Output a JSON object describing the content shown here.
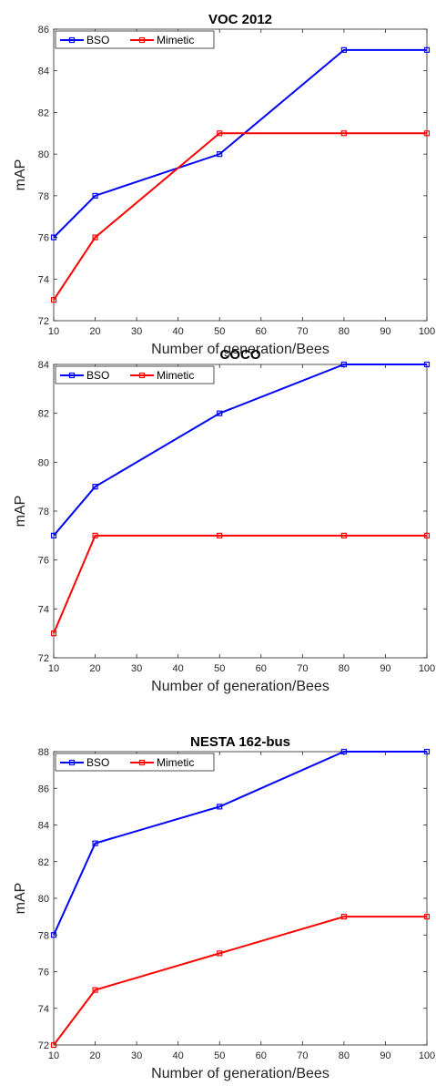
{
  "chart_data": [
    {
      "type": "line",
      "title": "VOC 2012",
      "xlabel": "Number of generation/Bees",
      "ylabel": "mAP",
      "xlim": [
        10,
        100
      ],
      "ylim": [
        72,
        86
      ],
      "xticks": [
        10,
        20,
        30,
        40,
        50,
        60,
        70,
        80,
        90,
        100
      ],
      "yticks": [
        72,
        74,
        76,
        78,
        80,
        82,
        84,
        86
      ],
      "legend_position": "top-left",
      "series": [
        {
          "name": "BSO",
          "color": "#0000ff",
          "x": [
            10,
            20,
            50,
            80,
            100
          ],
          "y": [
            76,
            78,
            80,
            85,
            85
          ]
        },
        {
          "name": "Mimetic",
          "color": "#ff0000",
          "x": [
            10,
            20,
            50,
            80,
            100
          ],
          "y": [
            73,
            76,
            81,
            81,
            81
          ]
        }
      ]
    },
    {
      "type": "line",
      "title": "COCO",
      "xlabel": "Number of generation/Bees",
      "ylabel": "mAP",
      "xlim": [
        10,
        100
      ],
      "ylim": [
        72,
        84
      ],
      "xticks": [
        10,
        20,
        30,
        40,
        50,
        60,
        70,
        80,
        90,
        100
      ],
      "yticks": [
        72,
        74,
        76,
        78,
        80,
        82,
        84
      ],
      "legend_position": "top-left",
      "series": [
        {
          "name": "BSO",
          "color": "#0000ff",
          "x": [
            10,
            20,
            50,
            80,
            100
          ],
          "y": [
            77,
            79,
            82,
            84,
            84
          ]
        },
        {
          "name": "Mimetic",
          "color": "#ff0000",
          "x": [
            10,
            20,
            50,
            80,
            100
          ],
          "y": [
            73,
            77,
            77,
            77,
            77
          ]
        }
      ]
    },
    {
      "type": "line",
      "title": "NESTA 162-bus",
      "xlabel": "Number of generation/Bees",
      "ylabel": "mAP",
      "xlim": [
        10,
        100
      ],
      "ylim": [
        72,
        88
      ],
      "xticks": [
        10,
        20,
        30,
        40,
        50,
        60,
        70,
        80,
        90,
        100
      ],
      "yticks": [
        72,
        74,
        76,
        78,
        80,
        82,
        84,
        86,
        88
      ],
      "legend_position": "top-left",
      "series": [
        {
          "name": "BSO",
          "color": "#0000ff",
          "x": [
            10,
            20,
            50,
            80,
            100
          ],
          "y": [
            78,
            83,
            85,
            88,
            88
          ]
        },
        {
          "name": "Mimetic",
          "color": "#ff0000",
          "x": [
            10,
            20,
            50,
            80,
            100
          ],
          "y": [
            72,
            75,
            77,
            79,
            79
          ]
        }
      ]
    }
  ]
}
